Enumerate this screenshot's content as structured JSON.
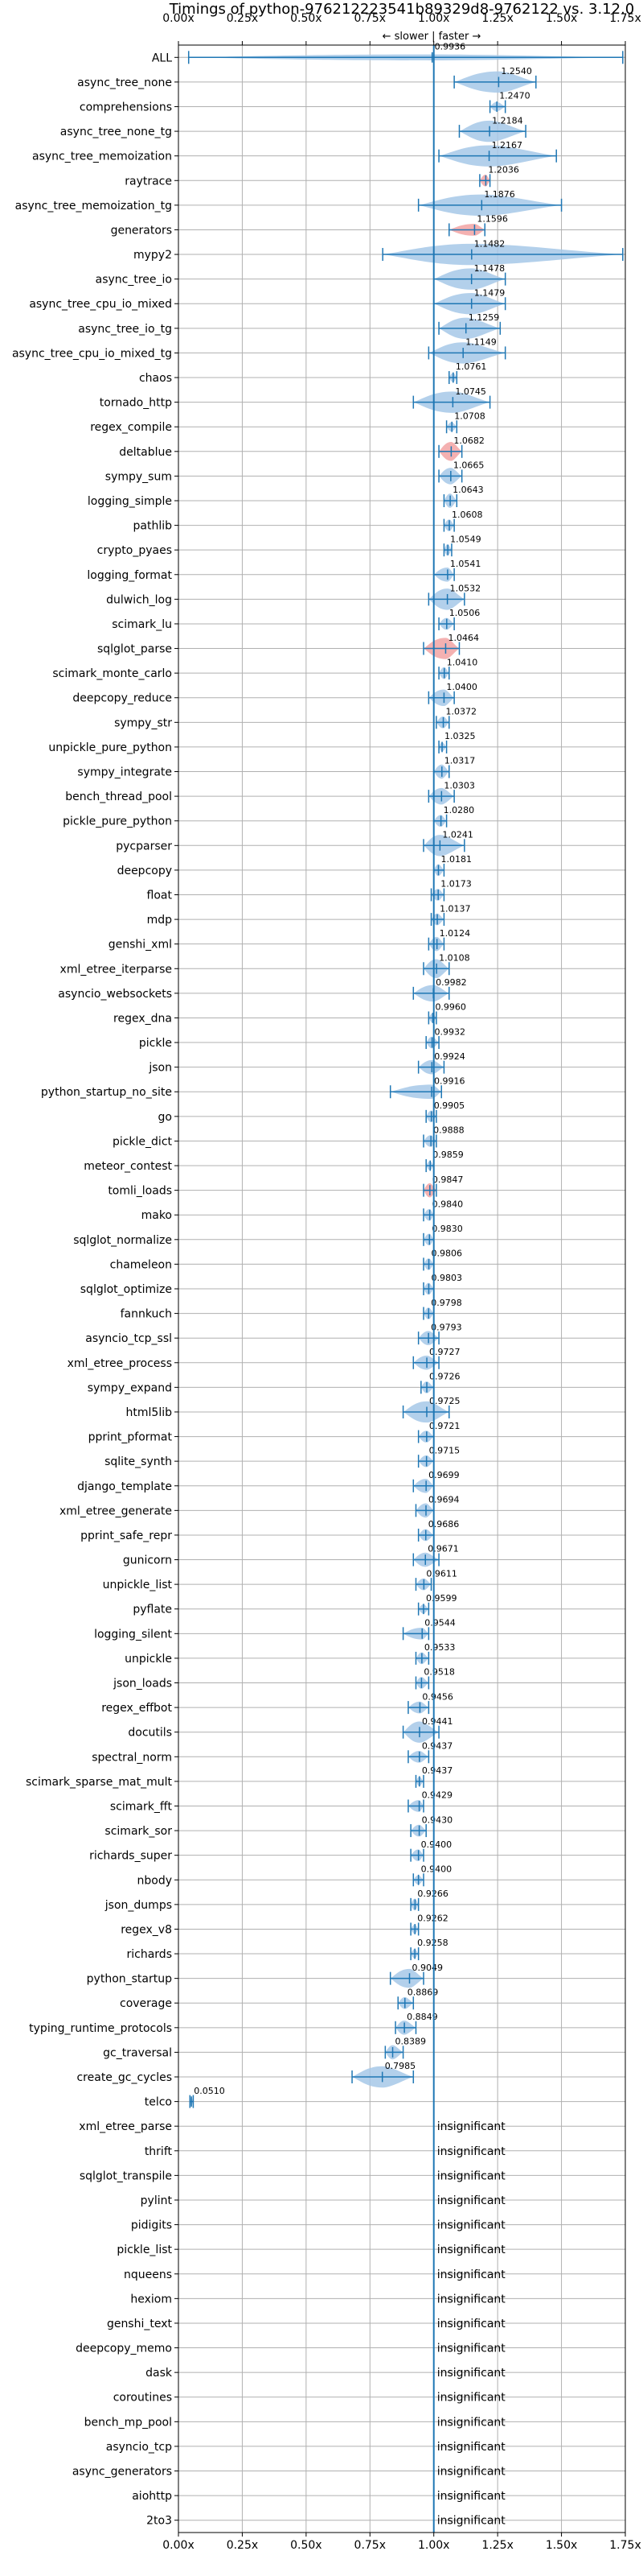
{
  "chart_data": {
    "type": "violin",
    "title": "Timings of python-976212223541b89329d8-9762122 vs. 3.12.0",
    "direction_label": "← slower | faster →",
    "xlim": [
      0,
      1.75
    ],
    "reference_line": 1.0,
    "x_ticks": [
      "0.00x",
      "0.25x",
      "0.50x",
      "0.75x",
      "1.00x",
      "1.25x",
      "1.50x",
      "1.75x"
    ],
    "x_tick_values": [
      0,
      0.25,
      0.5,
      0.75,
      1.0,
      1.25,
      1.5,
      1.75
    ],
    "grid": true,
    "colors": {
      "violin": "#a6c8e8",
      "line": "#1f77b4",
      "highlight": "#f2a3a3",
      "text": "#000000"
    },
    "insignificant_label": "insignificant",
    "benchmarks": [
      {
        "name": "ALL",
        "value": 0.9936,
        "label": "0.9936",
        "min": 0.04,
        "max": 1.74,
        "w": 0.25
      },
      {
        "name": "async_tree_none",
        "value": 1.254,
        "label": "1.2540",
        "min": 1.08,
        "max": 1.4,
        "w": 0.9
      },
      {
        "name": "comprehensions",
        "value": 1.247,
        "label": "1.2470",
        "min": 1.22,
        "max": 1.28,
        "w": 0.4
      },
      {
        "name": "async_tree_none_tg",
        "value": 1.2184,
        "label": "1.2184",
        "min": 1.1,
        "max": 1.36,
        "w": 0.9
      },
      {
        "name": "async_tree_memoization",
        "value": 1.2167,
        "label": "1.2167",
        "min": 1.02,
        "max": 1.48,
        "w": 0.9
      },
      {
        "name": "raytrace",
        "value": 1.2036,
        "label": "1.2036",
        "min": 1.18,
        "max": 1.22,
        "w": 0.5,
        "highlight": true
      },
      {
        "name": "async_tree_memoization_tg",
        "value": 1.1876,
        "label": "1.1876",
        "min": 0.94,
        "max": 1.5,
        "w": 0.9
      },
      {
        "name": "generators",
        "value": 1.1596,
        "label": "1.1596",
        "min": 1.06,
        "max": 1.2,
        "w": 0.5,
        "highlight": true
      },
      {
        "name": "mypy2",
        "value": 1.1482,
        "label": "1.1482",
        "min": 0.8,
        "max": 1.74,
        "w": 0.9
      },
      {
        "name": "async_tree_io",
        "value": 1.1478,
        "label": "1.1478",
        "min": 1.0,
        "max": 1.28,
        "w": 0.9
      },
      {
        "name": "async_tree_cpu_io_mixed",
        "value": 1.1479,
        "label": "1.1479",
        "min": 1.0,
        "max": 1.28,
        "w": 0.9
      },
      {
        "name": "async_tree_io_tg",
        "value": 1.1259,
        "label": "1.1259",
        "min": 1.02,
        "max": 1.26,
        "w": 0.9
      },
      {
        "name": "async_tree_cpu_io_mixed_tg",
        "value": 1.1149,
        "label": "1.1149",
        "min": 0.98,
        "max": 1.28,
        "w": 0.9
      },
      {
        "name": "chaos",
        "value": 1.0761,
        "label": "1.0761",
        "min": 1.06,
        "max": 1.09,
        "w": 0.4
      },
      {
        "name": "tornado_http",
        "value": 1.0745,
        "label": "1.0745",
        "min": 0.92,
        "max": 1.22,
        "w": 0.9
      },
      {
        "name": "regex_compile",
        "value": 1.0708,
        "label": "1.0708",
        "min": 1.05,
        "max": 1.09,
        "w": 0.4
      },
      {
        "name": "deltablue",
        "value": 1.0682,
        "label": "1.0682",
        "min": 1.02,
        "max": 1.11,
        "w": 0.8,
        "highlight": true
      },
      {
        "name": "sympy_sum",
        "value": 1.0665,
        "label": "1.0665",
        "min": 1.02,
        "max": 1.11,
        "w": 0.7
      },
      {
        "name": "logging_simple",
        "value": 1.0643,
        "label": "1.0643",
        "min": 1.04,
        "max": 1.09,
        "w": 0.6
      },
      {
        "name": "pathlib",
        "value": 1.0608,
        "label": "1.0608",
        "min": 1.04,
        "max": 1.08,
        "w": 0.5
      },
      {
        "name": "crypto_pyaes",
        "value": 1.0549,
        "label": "1.0549",
        "min": 1.04,
        "max": 1.07,
        "w": 0.5
      },
      {
        "name": "logging_format",
        "value": 1.0541,
        "label": "1.0541",
        "min": 1.0,
        "max": 1.08,
        "w": 0.6
      },
      {
        "name": "dulwich_log",
        "value": 1.0532,
        "label": "1.0532",
        "min": 0.98,
        "max": 1.12,
        "w": 0.9
      },
      {
        "name": "scimark_lu",
        "value": 1.0506,
        "label": "1.0506",
        "min": 1.02,
        "max": 1.08,
        "w": 0.5
      },
      {
        "name": "sqlglot_parse",
        "value": 1.0464,
        "label": "1.0464",
        "min": 0.96,
        "max": 1.1,
        "w": 0.9,
        "highlight": true
      },
      {
        "name": "scimark_monte_carlo",
        "value": 1.041,
        "label": "1.0410",
        "min": 1.02,
        "max": 1.06,
        "w": 0.5
      },
      {
        "name": "deepcopy_reduce",
        "value": 1.04,
        "label": "1.0400",
        "min": 0.98,
        "max": 1.08,
        "w": 0.7
      },
      {
        "name": "sympy_str",
        "value": 1.0372,
        "label": "1.0372",
        "min": 1.01,
        "max": 1.06,
        "w": 0.5
      },
      {
        "name": "unpickle_pure_python",
        "value": 1.0325,
        "label": "1.0325",
        "min": 1.02,
        "max": 1.05,
        "w": 0.4
      },
      {
        "name": "sympy_integrate",
        "value": 1.0317,
        "label": "1.0317",
        "min": 1.0,
        "max": 1.06,
        "w": 0.6
      },
      {
        "name": "bench_thread_pool",
        "value": 1.0303,
        "label": "1.0303",
        "min": 0.98,
        "max": 1.08,
        "w": 0.7
      },
      {
        "name": "pickle_pure_python",
        "value": 1.028,
        "label": "1.0280",
        "min": 1.0,
        "max": 1.05,
        "w": 0.5
      },
      {
        "name": "pycparser",
        "value": 1.0241,
        "label": "1.0241",
        "min": 0.96,
        "max": 1.12,
        "w": 0.9
      },
      {
        "name": "deepcopy",
        "value": 1.0181,
        "label": "1.0181",
        "min": 1.0,
        "max": 1.04,
        "w": 0.5
      },
      {
        "name": "float",
        "value": 1.0173,
        "label": "1.0173",
        "min": 0.99,
        "max": 1.04,
        "w": 0.5
      },
      {
        "name": "mdp",
        "value": 1.0137,
        "label": "1.0137",
        "min": 0.99,
        "max": 1.04,
        "w": 0.5
      },
      {
        "name": "genshi_xml",
        "value": 1.0124,
        "label": "1.0124",
        "min": 0.98,
        "max": 1.04,
        "w": 0.6
      },
      {
        "name": "xml_etree_iterparse",
        "value": 1.0108,
        "label": "1.0108",
        "min": 0.96,
        "max": 1.06,
        "w": 0.8
      },
      {
        "name": "asyncio_websockets",
        "value": 0.9982,
        "label": "0.9982",
        "min": 0.92,
        "max": 1.06,
        "w": 0.7
      },
      {
        "name": "regex_dna",
        "value": 0.996,
        "label": "0.9960",
        "min": 0.98,
        "max": 1.01,
        "w": 0.4
      },
      {
        "name": "pickle",
        "value": 0.9932,
        "label": "0.9932",
        "min": 0.97,
        "max": 1.02,
        "w": 0.5
      },
      {
        "name": "json",
        "value": 0.9924,
        "label": "0.9924",
        "min": 0.94,
        "max": 1.04,
        "w": 0.6
      },
      {
        "name": "python_startup_no_site",
        "value": 0.9916,
        "label": "0.9916",
        "min": 0.83,
        "max": 1.03,
        "w": 0.6
      },
      {
        "name": "go",
        "value": 0.9905,
        "label": "0.9905",
        "min": 0.97,
        "max": 1.01,
        "w": 0.5
      },
      {
        "name": "pickle_dict",
        "value": 0.9888,
        "label": "0.9888",
        "min": 0.96,
        "max": 1.01,
        "w": 0.5
      },
      {
        "name": "meteor_contest",
        "value": 0.9859,
        "label": "0.9859",
        "min": 0.97,
        "max": 1.0,
        "w": 0.4
      },
      {
        "name": "tomli_loads",
        "value": 0.9847,
        "label": "0.9847",
        "min": 0.96,
        "max": 1.01,
        "w": 0.6,
        "highlight": true
      },
      {
        "name": "mako",
        "value": 0.984,
        "label": "0.9840",
        "min": 0.96,
        "max": 1.0,
        "w": 0.5
      },
      {
        "name": "sqlglot_normalize",
        "value": 0.983,
        "label": "0.9830",
        "min": 0.96,
        "max": 1.0,
        "w": 0.5
      },
      {
        "name": "chameleon",
        "value": 0.9806,
        "label": "0.9806",
        "min": 0.96,
        "max": 1.0,
        "w": 0.5
      },
      {
        "name": "sqlglot_optimize",
        "value": 0.9803,
        "label": "0.9803",
        "min": 0.96,
        "max": 1.0,
        "w": 0.5
      },
      {
        "name": "fannkuch",
        "value": 0.9798,
        "label": "0.9798",
        "min": 0.96,
        "max": 1.0,
        "w": 0.5
      },
      {
        "name": "asyncio_tcp_ssl",
        "value": 0.9793,
        "label": "0.9793",
        "min": 0.94,
        "max": 1.02,
        "w": 0.6
      },
      {
        "name": "xml_etree_process",
        "value": 0.9727,
        "label": "0.9727",
        "min": 0.92,
        "max": 1.02,
        "w": 0.6
      },
      {
        "name": "sympy_expand",
        "value": 0.9726,
        "label": "0.9726",
        "min": 0.95,
        "max": 1.0,
        "w": 0.5
      },
      {
        "name": "html5lib",
        "value": 0.9725,
        "label": "0.9725",
        "min": 0.88,
        "max": 1.06,
        "w": 0.9
      },
      {
        "name": "pprint_pformat",
        "value": 0.9721,
        "label": "0.9721",
        "min": 0.94,
        "max": 1.0,
        "w": 0.5
      },
      {
        "name": "sqlite_synth",
        "value": 0.9715,
        "label": "0.9715",
        "min": 0.94,
        "max": 1.0,
        "w": 0.5
      },
      {
        "name": "django_template",
        "value": 0.9699,
        "label": "0.9699",
        "min": 0.92,
        "max": 1.0,
        "w": 0.6
      },
      {
        "name": "xml_etree_generate",
        "value": 0.9694,
        "label": "0.9694",
        "min": 0.93,
        "max": 1.0,
        "w": 0.6
      },
      {
        "name": "pprint_safe_repr",
        "value": 0.9686,
        "label": "0.9686",
        "min": 0.94,
        "max": 1.0,
        "w": 0.5
      },
      {
        "name": "gunicorn",
        "value": 0.9671,
        "label": "0.9671",
        "min": 0.92,
        "max": 1.02,
        "w": 0.6
      },
      {
        "name": "unpickle_list",
        "value": 0.9611,
        "label": "0.9611",
        "min": 0.93,
        "max": 0.99,
        "w": 0.5
      },
      {
        "name": "pyflate",
        "value": 0.9599,
        "label": "0.9599",
        "min": 0.94,
        "max": 0.98,
        "w": 0.4
      },
      {
        "name": "logging_silent",
        "value": 0.9544,
        "label": "0.9544",
        "min": 0.88,
        "max": 0.98,
        "w": 0.5
      },
      {
        "name": "unpickle",
        "value": 0.9533,
        "label": "0.9533",
        "min": 0.93,
        "max": 0.98,
        "w": 0.5
      },
      {
        "name": "json_loads",
        "value": 0.9518,
        "label": "0.9518",
        "min": 0.93,
        "max": 0.98,
        "w": 0.5
      },
      {
        "name": "regex_effbot",
        "value": 0.9456,
        "label": "0.9456",
        "min": 0.9,
        "max": 0.98,
        "w": 0.5
      },
      {
        "name": "docutils",
        "value": 0.9441,
        "label": "0.9441",
        "min": 0.88,
        "max": 1.02,
        "w": 0.9
      },
      {
        "name": "spectral_norm",
        "value": 0.9437,
        "label": "0.9437",
        "min": 0.9,
        "max": 0.98,
        "w": 0.5
      },
      {
        "name": "scimark_sparse_mat_mult",
        "value": 0.9437,
        "label": "0.9437",
        "min": 0.93,
        "max": 0.96,
        "w": 0.4
      },
      {
        "name": "scimark_fft",
        "value": 0.9429,
        "label": "0.9429",
        "min": 0.9,
        "max": 0.96,
        "w": 0.5
      },
      {
        "name": "scimark_sor",
        "value": 0.943,
        "label": "0.9430",
        "min": 0.91,
        "max": 0.97,
        "w": 0.5
      },
      {
        "name": "richards_super",
        "value": 0.94,
        "label": "0.9400",
        "min": 0.91,
        "max": 0.96,
        "w": 0.5
      },
      {
        "name": "nbody",
        "value": 0.94,
        "label": "0.9400",
        "min": 0.92,
        "max": 0.96,
        "w": 0.4
      },
      {
        "name": "json_dumps",
        "value": 0.9266,
        "label": "0.9266",
        "min": 0.91,
        "max": 0.94,
        "w": 0.5
      },
      {
        "name": "regex_v8",
        "value": 0.9262,
        "label": "0.9262",
        "min": 0.91,
        "max": 0.94,
        "w": 0.4
      },
      {
        "name": "richards",
        "value": 0.9258,
        "label": "0.9258",
        "min": 0.91,
        "max": 0.94,
        "w": 0.4
      },
      {
        "name": "python_startup",
        "value": 0.9049,
        "label": "0.9049",
        "min": 0.83,
        "max": 0.96,
        "w": 0.8
      },
      {
        "name": "coverage",
        "value": 0.8869,
        "label": "0.8869",
        "min": 0.86,
        "max": 0.92,
        "w": 0.5
      },
      {
        "name": "typing_runtime_protocols",
        "value": 0.8849,
        "label": "0.8849",
        "min": 0.85,
        "max": 0.93,
        "w": 0.6
      },
      {
        "name": "gc_traversal",
        "value": 0.8389,
        "label": "0.8389",
        "min": 0.81,
        "max": 0.88,
        "w": 0.6
      },
      {
        "name": "create_gc_cycles",
        "value": 0.7985,
        "label": "0.7985",
        "min": 0.68,
        "max": 0.92,
        "w": 0.9
      },
      {
        "name": "telco",
        "value": 0.051,
        "label": "0.0510",
        "min": 0.045,
        "max": 0.058,
        "w": 0.4
      },
      {
        "name": "xml_etree_parse",
        "insignificant": true
      },
      {
        "name": "thrift",
        "insignificant": true
      },
      {
        "name": "sqlglot_transpile",
        "insignificant": true
      },
      {
        "name": "pylint",
        "insignificant": true
      },
      {
        "name": "pidigits",
        "insignificant": true
      },
      {
        "name": "pickle_list",
        "insignificant": true
      },
      {
        "name": "nqueens",
        "insignificant": true
      },
      {
        "name": "hexiom",
        "insignificant": true
      },
      {
        "name": "genshi_text",
        "insignificant": true
      },
      {
        "name": "deepcopy_memo",
        "insignificant": true
      },
      {
        "name": "dask",
        "insignificant": true
      },
      {
        "name": "coroutines",
        "insignificant": true
      },
      {
        "name": "bench_mp_pool",
        "insignificant": true
      },
      {
        "name": "asyncio_tcp",
        "insignificant": true
      },
      {
        "name": "async_generators",
        "insignificant": true
      },
      {
        "name": "aiohttp",
        "insignificant": true
      },
      {
        "name": "2to3",
        "insignificant": true
      }
    ]
  }
}
